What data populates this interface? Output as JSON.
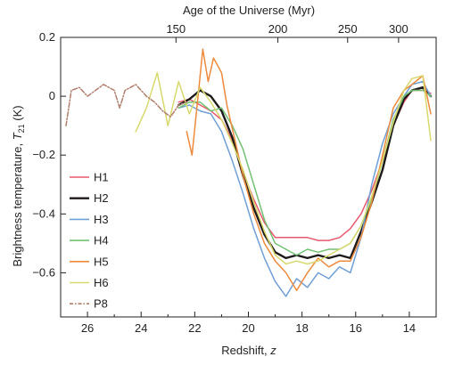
{
  "chart_data": {
    "type": "line",
    "xlabel": "Redshift, z",
    "top_axis_label": "Age of the Universe (Myr)",
    "ylabel": "Brightness temperature, T21 (K)",
    "ylim": [
      -0.75,
      0.2
    ],
    "xlim": [
      27,
      13.0
    ],
    "x_ticks": [
      26,
      24,
      22,
      20,
      18,
      16,
      14
    ],
    "y_ticks": [
      0.2,
      0,
      -0.2,
      -0.4,
      -0.6
    ],
    "y_tick_labels": [
      "0.2",
      "0",
      "−0.2",
      "−0.4",
      "−0.6"
    ],
    "top_ticks": [
      {
        "label": "150",
        "z": 22.7
      },
      {
        "label": "200",
        "z": 18.9
      },
      {
        "label": "250",
        "z": 16.3
      },
      {
        "label": "300",
        "z": 14.4
      }
    ],
    "grid": false,
    "legend_position": "lower-left",
    "series": [
      {
        "name": "H1",
        "color": "#e8586e",
        "points": [
          [
            22.6,
            -0.02
          ],
          [
            22.2,
            -0.01
          ],
          [
            21.8,
            -0.03
          ],
          [
            21.4,
            -0.05
          ],
          [
            21.0,
            -0.08
          ],
          [
            20.6,
            -0.15
          ],
          [
            20.2,
            -0.26
          ],
          [
            19.8,
            -0.35
          ],
          [
            19.4,
            -0.43
          ],
          [
            19.0,
            -0.48
          ],
          [
            18.6,
            -0.48
          ],
          [
            18.2,
            -0.48
          ],
          [
            17.8,
            -0.48
          ],
          [
            17.4,
            -0.49
          ],
          [
            17.0,
            -0.49
          ],
          [
            16.6,
            -0.48
          ],
          [
            16.2,
            -0.45
          ],
          [
            15.8,
            -0.4
          ],
          [
            15.4,
            -0.32
          ],
          [
            15.0,
            -0.22
          ],
          [
            14.6,
            -0.1
          ],
          [
            14.2,
            -0.02
          ],
          [
            13.9,
            0.02
          ],
          [
            13.5,
            0.02
          ],
          [
            13.2,
            0.01
          ]
        ]
      },
      {
        "name": "H2",
        "color": "#1e1a1a",
        "points": [
          [
            22.6,
            -0.03
          ],
          [
            22.2,
            -0.01
          ],
          [
            21.8,
            0.02
          ],
          [
            21.4,
            0.0
          ],
          [
            21.0,
            -0.05
          ],
          [
            20.6,
            -0.14
          ],
          [
            20.2,
            -0.27
          ],
          [
            19.8,
            -0.38
          ],
          [
            19.4,
            -0.47
          ],
          [
            19.0,
            -0.53
          ],
          [
            18.6,
            -0.55
          ],
          [
            18.2,
            -0.54
          ],
          [
            17.8,
            -0.55
          ],
          [
            17.4,
            -0.54
          ],
          [
            17.0,
            -0.55
          ],
          [
            16.6,
            -0.54
          ],
          [
            16.2,
            -0.55
          ],
          [
            15.8,
            -0.46
          ],
          [
            15.4,
            -0.36
          ],
          [
            15.0,
            -0.25
          ],
          [
            14.6,
            -0.1
          ],
          [
            14.2,
            -0.01
          ],
          [
            13.9,
            0.02
          ],
          [
            13.5,
            0.03
          ],
          [
            13.2,
            0.0
          ]
        ]
      },
      {
        "name": "H3",
        "color": "#6f9fd6",
        "points": [
          [
            22.6,
            -0.04
          ],
          [
            22.2,
            -0.03
          ],
          [
            21.8,
            -0.05
          ],
          [
            21.4,
            -0.06
          ],
          [
            21.0,
            -0.12
          ],
          [
            20.6,
            -0.22
          ],
          [
            20.2,
            -0.33
          ],
          [
            19.8,
            -0.45
          ],
          [
            19.4,
            -0.55
          ],
          [
            19.0,
            -0.63
          ],
          [
            18.6,
            -0.68
          ],
          [
            18.2,
            -0.62
          ],
          [
            17.8,
            -0.65
          ],
          [
            17.4,
            -0.6
          ],
          [
            17.0,
            -0.62
          ],
          [
            16.6,
            -0.58
          ],
          [
            16.2,
            -0.6
          ],
          [
            15.8,
            -0.48
          ],
          [
            15.4,
            -0.3
          ],
          [
            15.0,
            -0.16
          ],
          [
            14.6,
            -0.06
          ],
          [
            14.2,
            0.0
          ],
          [
            13.9,
            0.04
          ],
          [
            13.5,
            0.05
          ],
          [
            13.2,
            0.0
          ]
        ]
      },
      {
        "name": "H4",
        "color": "#72c073",
        "points": [
          [
            22.6,
            -0.04
          ],
          [
            22.2,
            -0.02
          ],
          [
            21.8,
            -0.02
          ],
          [
            21.4,
            -0.05
          ],
          [
            21.0,
            -0.04
          ],
          [
            20.6,
            -0.1
          ],
          [
            20.2,
            -0.18
          ],
          [
            19.8,
            -0.3
          ],
          [
            19.4,
            -0.42
          ],
          [
            19.0,
            -0.5
          ],
          [
            18.6,
            -0.52
          ],
          [
            18.2,
            -0.54
          ],
          [
            17.8,
            -0.52
          ],
          [
            17.4,
            -0.53
          ],
          [
            17.0,
            -0.52
          ],
          [
            16.6,
            -0.52
          ],
          [
            16.2,
            -0.5
          ],
          [
            15.8,
            -0.44
          ],
          [
            15.4,
            -0.35
          ],
          [
            15.0,
            -0.22
          ],
          [
            14.6,
            -0.08
          ],
          [
            14.2,
            0.0
          ],
          [
            13.9,
            0.02
          ],
          [
            13.5,
            0.02
          ],
          [
            13.2,
            0.0
          ]
        ]
      },
      {
        "name": "H5",
        "color": "#ee8a3c",
        "points": [
          [
            22.3,
            -0.12
          ],
          [
            22.1,
            -0.2
          ],
          [
            21.9,
            -0.02
          ],
          [
            21.7,
            0.16
          ],
          [
            21.5,
            0.05
          ],
          [
            21.3,
            0.13
          ],
          [
            21.0,
            0.08
          ],
          [
            20.8,
            -0.03
          ],
          [
            20.5,
            -0.15
          ],
          [
            20.2,
            -0.27
          ],
          [
            19.8,
            -0.4
          ],
          [
            19.4,
            -0.5
          ],
          [
            19.0,
            -0.56
          ],
          [
            18.6,
            -0.6
          ],
          [
            18.2,
            -0.66
          ],
          [
            17.8,
            -0.6
          ],
          [
            17.4,
            -0.55
          ],
          [
            17.0,
            -0.58
          ],
          [
            16.6,
            -0.56
          ],
          [
            16.2,
            -0.56
          ],
          [
            15.8,
            -0.48
          ],
          [
            15.4,
            -0.36
          ],
          [
            15.0,
            -0.2
          ],
          [
            14.6,
            -0.04
          ],
          [
            14.2,
            0.02
          ],
          [
            13.9,
            0.04
          ],
          [
            13.5,
            0.07
          ],
          [
            13.2,
            -0.06
          ]
        ]
      },
      {
        "name": "H6",
        "color": "#d8d96c",
        "points": [
          [
            24.2,
            -0.12
          ],
          [
            23.8,
            -0.04
          ],
          [
            23.4,
            0.08
          ],
          [
            23.0,
            -0.1
          ],
          [
            22.6,
            0.05
          ],
          [
            22.2,
            -0.06
          ],
          [
            21.8,
            0.03
          ],
          [
            21.4,
            -0.02
          ],
          [
            21.0,
            -0.08
          ],
          [
            20.6,
            -0.16
          ],
          [
            20.2,
            -0.25
          ],
          [
            19.8,
            -0.36
          ],
          [
            19.4,
            -0.46
          ],
          [
            19.0,
            -0.54
          ],
          [
            18.6,
            -0.57
          ],
          [
            18.2,
            -0.56
          ],
          [
            17.8,
            -0.57
          ],
          [
            17.4,
            -0.56
          ],
          [
            17.0,
            -0.54
          ],
          [
            16.6,
            -0.52
          ],
          [
            16.2,
            -0.5
          ],
          [
            15.8,
            -0.44
          ],
          [
            15.4,
            -0.34
          ],
          [
            15.0,
            -0.22
          ],
          [
            14.6,
            -0.09
          ],
          [
            14.2,
            0.02
          ],
          [
            13.9,
            0.06
          ],
          [
            13.5,
            0.07
          ],
          [
            13.2,
            -0.15
          ]
        ]
      },
      {
        "name": "P8",
        "color": "#b07d6b",
        "dashed": true,
        "points": [
          [
            26.8,
            -0.1
          ],
          [
            26.6,
            0.02
          ],
          [
            26.3,
            0.03
          ],
          [
            26.0,
            0.0
          ],
          [
            25.7,
            0.02
          ],
          [
            25.4,
            0.04
          ],
          [
            25.0,
            0.02
          ],
          [
            24.8,
            -0.04
          ],
          [
            24.6,
            0.02
          ],
          [
            24.2,
            0.04
          ],
          [
            23.8,
            0.0
          ],
          [
            23.5,
            -0.02
          ],
          [
            23.2,
            -0.05
          ],
          [
            22.9,
            -0.07
          ],
          [
            22.6,
            -0.03
          ],
          [
            22.3,
            -0.02
          ]
        ]
      }
    ]
  }
}
